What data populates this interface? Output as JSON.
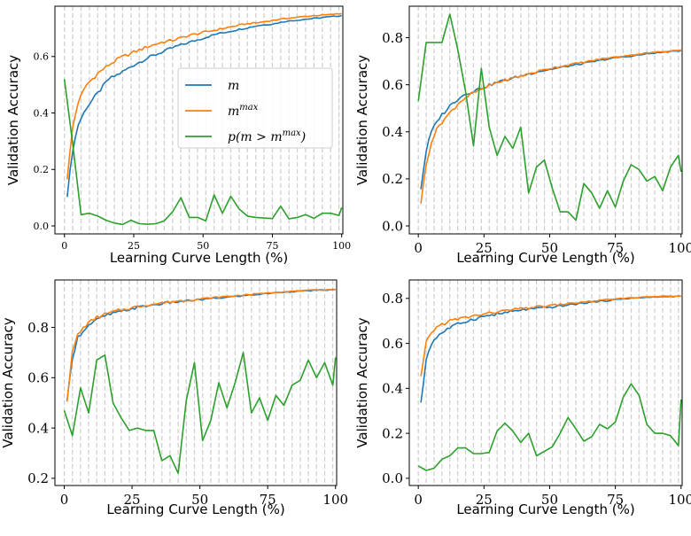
{
  "colors": {
    "m": "#1f77b4",
    "m_max": "#ff7f0e",
    "p": "#2ca02c",
    "grid": "#cccccc"
  },
  "legend": {
    "placement": "center-right",
    "panel": 0,
    "labels": [
      "m",
      "m^max",
      "p(m > m^max)"
    ]
  },
  "chart_data": [
    {
      "type": "line",
      "xlabel": "Learning Curve Length (%)",
      "ylabel": "Validation Accuracy",
      "xlim": [
        0,
        100
      ],
      "ylim": [
        0,
        0.75
      ],
      "xticks": [
        0,
        25,
        50,
        75,
        100
      ],
      "xtick_labels": [
        "0",
        "25",
        "50",
        "75",
        "100"
      ],
      "yticks": [
        0.0,
        0.2,
        0.4,
        0.6
      ],
      "ytick_labels": [
        "0.0",
        "0.2",
        "0.4",
        "0.6"
      ],
      "grid": "vertical-dashed",
      "series": [
        {
          "name": "m",
          "color": "#1f77b4",
          "kind": "curve",
          "x": [
            1,
            3,
            5,
            8,
            12,
            16,
            20,
            25,
            30,
            35,
            40,
            45,
            50,
            55,
            60,
            65,
            70,
            75,
            80,
            85,
            90,
            95,
            100
          ],
          "y": [
            0.11,
            0.27,
            0.36,
            0.42,
            0.47,
            0.52,
            0.54,
            0.57,
            0.595,
            0.615,
            0.635,
            0.65,
            0.665,
            0.68,
            0.69,
            0.7,
            0.71,
            0.715,
            0.725,
            0.73,
            0.735,
            0.74,
            0.745
          ]
        },
        {
          "name": "m^max",
          "color": "#ff7f0e",
          "kind": "curve",
          "x": [
            1,
            3,
            5,
            8,
            12,
            16,
            20,
            25,
            30,
            35,
            40,
            45,
            50,
            55,
            60,
            65,
            70,
            75,
            80,
            85,
            90,
            95,
            100
          ],
          "y": [
            0.17,
            0.35,
            0.44,
            0.5,
            0.54,
            0.57,
            0.595,
            0.615,
            0.635,
            0.65,
            0.66,
            0.675,
            0.685,
            0.695,
            0.705,
            0.715,
            0.72,
            0.728,
            0.735,
            0.74,
            0.745,
            0.748,
            0.752
          ]
        },
        {
          "name": "p(m > m^max)",
          "color": "#2ca02c",
          "kind": "jagged",
          "x": [
            0,
            3,
            6,
            9,
            12,
            15,
            18,
            21,
            24,
            27,
            30,
            33,
            36,
            39,
            42,
            45,
            48,
            51,
            54,
            57,
            60,
            63,
            66,
            69,
            72,
            75,
            78,
            81,
            84,
            87,
            90,
            93,
            96,
            99,
            100
          ],
          "y": [
            0.52,
            0.29,
            0.04,
            0.045,
            0.035,
            0.02,
            0.01,
            0.005,
            0.02,
            0.008,
            0.006,
            0.008,
            0.018,
            0.05,
            0.1,
            0.03,
            0.03,
            0.018,
            0.11,
            0.045,
            0.105,
            0.06,
            0.035,
            0.03,
            0.028,
            0.026,
            0.07,
            0.025,
            0.03,
            0.04,
            0.027,
            0.045,
            0.045,
            0.037,
            0.065
          ]
        }
      ]
    },
    {
      "type": "line",
      "xlabel": "Learning Curve Length (%)",
      "ylabel": "Validation Accuracy",
      "xlim": [
        0,
        100
      ],
      "ylim": [
        0,
        0.9
      ],
      "xticks": [
        0,
        25,
        50,
        75,
        100
      ],
      "xtick_labels": [
        "0",
        "25",
        "50",
        "75",
        "100"
      ],
      "yticks": [
        0.0,
        0.2,
        0.4,
        0.6,
        0.8
      ],
      "ytick_labels": [
        "0.0",
        "0.2",
        "0.4",
        "0.6",
        "0.8"
      ],
      "grid": "vertical-dashed",
      "series": [
        {
          "name": "m",
          "color": "#1f77b4",
          "kind": "curve",
          "x": [
            1,
            3,
            5,
            8,
            12,
            16,
            20,
            25,
            30,
            35,
            40,
            45,
            50,
            55,
            60,
            65,
            70,
            75,
            80,
            85,
            90,
            95,
            100
          ],
          "y": [
            0.16,
            0.32,
            0.4,
            0.46,
            0.51,
            0.55,
            0.57,
            0.59,
            0.61,
            0.625,
            0.64,
            0.655,
            0.665,
            0.675,
            0.685,
            0.695,
            0.705,
            0.715,
            0.72,
            0.728,
            0.735,
            0.74,
            0.745
          ]
        },
        {
          "name": "m^max",
          "color": "#ff7f0e",
          "kind": "curve",
          "x": [
            1,
            3,
            5,
            8,
            12,
            16,
            20,
            25,
            30,
            35,
            40,
            45,
            50,
            55,
            60,
            65,
            70,
            75,
            80,
            85,
            90,
            95,
            100
          ],
          "y": [
            0.1,
            0.26,
            0.36,
            0.43,
            0.48,
            0.53,
            0.56,
            0.585,
            0.61,
            0.625,
            0.64,
            0.655,
            0.67,
            0.68,
            0.69,
            0.7,
            0.71,
            0.718,
            0.725,
            0.732,
            0.738,
            0.743,
            0.748
          ]
        },
        {
          "name": "p(m > m^max)",
          "color": "#2ca02c",
          "kind": "jagged",
          "x": [
            0,
            3,
            6,
            9,
            12,
            15,
            18,
            21,
            24,
            27,
            30,
            33,
            36,
            39,
            42,
            45,
            48,
            51,
            54,
            57,
            60,
            63,
            66,
            69,
            72,
            75,
            78,
            81,
            84,
            87,
            90,
            93,
            96,
            99,
            100
          ],
          "y": [
            0.53,
            0.78,
            0.78,
            0.78,
            0.9,
            0.75,
            0.57,
            0.34,
            0.67,
            0.42,
            0.3,
            0.38,
            0.33,
            0.42,
            0.14,
            0.25,
            0.28,
            0.16,
            0.06,
            0.06,
            0.025,
            0.18,
            0.14,
            0.075,
            0.15,
            0.08,
            0.19,
            0.26,
            0.24,
            0.19,
            0.21,
            0.15,
            0.25,
            0.3,
            0.23
          ]
        }
      ]
    },
    {
      "type": "line",
      "xlabel": "Learning Curve Length (%)",
      "ylabel": "Validation Accuracy",
      "xlim": [
        0,
        100
      ],
      "ylim": [
        0.2,
        0.96
      ],
      "xticks": [
        0,
        25,
        50,
        75,
        100
      ],
      "xtick_labels": [
        "0",
        "25",
        "50",
        "75",
        "100"
      ],
      "yticks": [
        0.2,
        0.4,
        0.6,
        0.8
      ],
      "ytick_labels": [
        "0.2",
        "0.4",
        "0.6",
        "0.8"
      ],
      "grid": "vertical-dashed",
      "series": [
        {
          "name": "m",
          "color": "#1f77b4",
          "kind": "curve",
          "x": [
            1,
            3,
            5,
            8,
            12,
            16,
            20,
            25,
            30,
            35,
            40,
            45,
            50,
            55,
            60,
            65,
            70,
            75,
            80,
            85,
            90,
            95,
            100
          ],
          "y": [
            0.5,
            0.68,
            0.76,
            0.8,
            0.83,
            0.85,
            0.86,
            0.875,
            0.885,
            0.893,
            0.9,
            0.905,
            0.91,
            0.915,
            0.92,
            0.925,
            0.93,
            0.935,
            0.94,
            0.943,
            0.946,
            0.948,
            0.95
          ]
        },
        {
          "name": "m^max",
          "color": "#ff7f0e",
          "kind": "curve",
          "x": [
            1,
            3,
            5,
            8,
            12,
            16,
            20,
            25,
            30,
            35,
            40,
            45,
            50,
            55,
            60,
            65,
            70,
            75,
            80,
            85,
            90,
            95,
            100
          ],
          "y": [
            0.51,
            0.7,
            0.77,
            0.81,
            0.84,
            0.855,
            0.867,
            0.878,
            0.888,
            0.896,
            0.903,
            0.908,
            0.913,
            0.918,
            0.923,
            0.928,
            0.932,
            0.937,
            0.941,
            0.944,
            0.947,
            0.949,
            0.951
          ]
        },
        {
          "name": "p(m > m^max)",
          "color": "#2ca02c",
          "kind": "jagged",
          "x": [
            0,
            3,
            6,
            9,
            12,
            15,
            18,
            21,
            24,
            27,
            30,
            33,
            36,
            39,
            42,
            45,
            48,
            51,
            54,
            57,
            60,
            63,
            66,
            69,
            72,
            75,
            78,
            81,
            84,
            87,
            90,
            93,
            96,
            99,
            100
          ],
          "y": [
            0.47,
            0.37,
            0.56,
            0.46,
            0.67,
            0.69,
            0.5,
            0.44,
            0.39,
            0.4,
            0.39,
            0.39,
            0.27,
            0.29,
            0.22,
            0.51,
            0.66,
            0.35,
            0.43,
            0.58,
            0.48,
            0.58,
            0.7,
            0.46,
            0.52,
            0.43,
            0.53,
            0.49,
            0.57,
            0.59,
            0.67,
            0.6,
            0.66,
            0.57,
            0.68
          ]
        }
      ]
    },
    {
      "type": "line",
      "xlabel": "Learning Curve Length (%)",
      "ylabel": "Validation Accuracy",
      "xlim": [
        0,
        100
      ],
      "ylim": [
        0,
        0.85
      ],
      "xticks": [
        0,
        25,
        50,
        75,
        100
      ],
      "xtick_labels": [
        "0",
        "25",
        "50",
        "75",
        "100"
      ],
      "yticks": [
        0.0,
        0.2,
        0.4,
        0.6,
        0.8
      ],
      "ytick_labels": [
        "0.0",
        "0.2",
        "0.4",
        "0.6",
        "0.8"
      ],
      "grid": "vertical-dashed",
      "series": [
        {
          "name": "m",
          "color": "#1f77b4",
          "kind": "curve",
          "x": [
            1,
            3,
            5,
            8,
            12,
            16,
            20,
            25,
            30,
            35,
            40,
            45,
            50,
            55,
            60,
            65,
            70,
            75,
            80,
            85,
            90,
            95,
            100
          ],
          "y": [
            0.33,
            0.53,
            0.6,
            0.64,
            0.67,
            0.69,
            0.705,
            0.72,
            0.73,
            0.74,
            0.75,
            0.755,
            0.76,
            0.768,
            0.775,
            0.782,
            0.788,
            0.794,
            0.8,
            0.803,
            0.806,
            0.808,
            0.81
          ]
        },
        {
          "name": "m^max",
          "color": "#ff7f0e",
          "kind": "curve",
          "x": [
            1,
            3,
            5,
            8,
            12,
            16,
            20,
            25,
            30,
            35,
            40,
            45,
            50,
            55,
            60,
            65,
            70,
            75,
            80,
            85,
            90,
            95,
            100
          ],
          "y": [
            0.45,
            0.6,
            0.65,
            0.68,
            0.7,
            0.71,
            0.72,
            0.73,
            0.74,
            0.748,
            0.756,
            0.762,
            0.768,
            0.774,
            0.78,
            0.786,
            0.792,
            0.797,
            0.802,
            0.805,
            0.808,
            0.81,
            0.812
          ]
        },
        {
          "name": "p(m > m^max)",
          "color": "#2ca02c",
          "kind": "jagged",
          "x": [
            0,
            3,
            6,
            9,
            12,
            15,
            18,
            21,
            24,
            27,
            30,
            33,
            36,
            39,
            42,
            45,
            48,
            51,
            54,
            57,
            60,
            63,
            66,
            69,
            72,
            75,
            78,
            81,
            84,
            87,
            90,
            93,
            96,
            99,
            100
          ],
          "y": [
            0.055,
            0.035,
            0.045,
            0.085,
            0.1,
            0.135,
            0.135,
            0.11,
            0.11,
            0.115,
            0.21,
            0.245,
            0.21,
            0.16,
            0.2,
            0.1,
            0.12,
            0.14,
            0.2,
            0.27,
            0.22,
            0.165,
            0.185,
            0.24,
            0.22,
            0.25,
            0.36,
            0.42,
            0.37,
            0.24,
            0.2,
            0.2,
            0.19,
            0.145,
            0.35
          ]
        }
      ]
    }
  ]
}
